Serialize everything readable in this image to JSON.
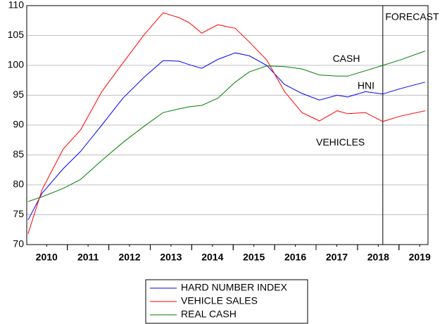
{
  "chart_data": {
    "type": "line",
    "x": [
      2010.05,
      2010.39,
      2010.9,
      2011.32,
      2011.83,
      2012.34,
      2012.85,
      2013.31,
      2013.69,
      2013.95,
      2014.24,
      2014.63,
      2015.05,
      2015.39,
      2015.81,
      2016.24,
      2016.66,
      2017.08,
      2017.51,
      2017.76,
      2018.19,
      2018.61,
      2019.03,
      2019.63
    ],
    "series": [
      {
        "name": "HARD NUMBER INDEX",
        "color": "#0000ff",
        "values": [
          74.1,
          78.6,
          82.7,
          85.6,
          90,
          94.5,
          98,
          100.8,
          100.7,
          100.1,
          99.5,
          101,
          102.1,
          101.6,
          100,
          96.8,
          95.3,
          94.2,
          95,
          94.7,
          95.6,
          95.2,
          96.1,
          97.2
        ]
      },
      {
        "name": "VEHICLE SALES",
        "color": "#ff0000",
        "values": [
          71.8,
          79.2,
          86,
          89.2,
          95.6,
          100.4,
          105.1,
          108.8,
          108,
          107.1,
          105.4,
          106.8,
          106.2,
          103.9,
          100.9,
          95.6,
          92.1,
          90.7,
          92.4,
          91.9,
          92.1,
          90.6,
          91.5,
          92.4
        ]
      },
      {
        "name": "REAL CASH",
        "color": "#008000",
        "values": [
          77.2,
          78,
          79.4,
          80.9,
          84.1,
          87.1,
          89.8,
          92.1,
          92.7,
          93.1,
          93.3,
          94.5,
          97.2,
          98.9,
          99.9,
          99.8,
          99.4,
          98.4,
          98.2,
          98.2,
          99.1,
          100,
          100.9,
          102.4
        ]
      }
    ],
    "xlim": [
      2010.02,
      2019.7
    ],
    "xticks": [
      {
        "value": 2010.5,
        "label": "2010"
      },
      {
        "value": 2011.5,
        "label": "2011"
      },
      {
        "value": 2012.5,
        "label": "2012"
      },
      {
        "value": 2013.5,
        "label": "2013"
      },
      {
        "value": 2014.5,
        "label": "2014"
      },
      {
        "value": 2015.5,
        "label": "2015"
      },
      {
        "value": 2016.5,
        "label": "2016"
      },
      {
        "value": 2017.5,
        "label": "2017"
      },
      {
        "value": 2018.5,
        "label": "2018"
      },
      {
        "value": 2019.5,
        "label": "2019"
      }
    ],
    "ylim": [
      70,
      110
    ],
    "yticks": [
      70,
      75,
      80,
      85,
      90,
      95,
      100,
      105,
      110
    ],
    "grid": true,
    "forecast_x": 2018.61,
    "annotations": [
      {
        "text": "FORECAST",
        "x": 2018.67,
        "y": 108
      },
      {
        "text": "CASH",
        "x": 2017.4,
        "y": 101
      },
      {
        "text": "HNI",
        "x": 2018.0,
        "y": 96.5
      },
      {
        "text": "VEHICLES",
        "x": 2017.0,
        "y": 87
      }
    ]
  }
}
